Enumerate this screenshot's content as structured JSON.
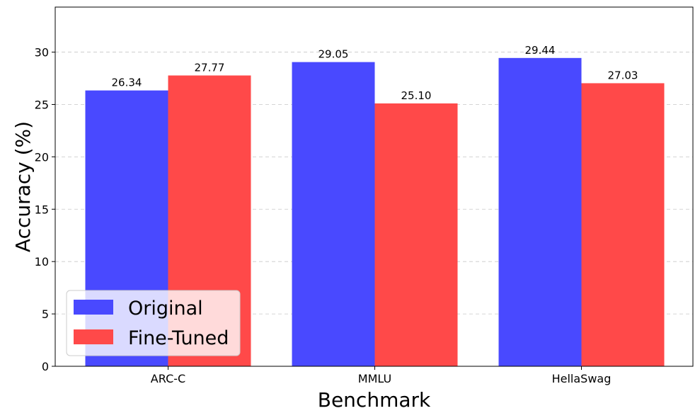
{
  "chart_data": {
    "type": "bar",
    "categories": [
      "ARC-C",
      "MMLU",
      "HellaSwag"
    ],
    "series": [
      {
        "name": "Original",
        "values": [
          26.34,
          29.05,
          29.44
        ],
        "color": "#4949ff"
      },
      {
        "name": "Fine-Tuned",
        "values": [
          27.77,
          25.1,
          27.03
        ],
        "color": "#ff4949"
      }
    ],
    "value_labels": [
      [
        "26.34",
        "29.05",
        "29.44"
      ],
      [
        "27.77",
        "25.10",
        "27.03"
      ]
    ],
    "title": "",
    "xlabel": "Benchmark",
    "ylabel": "Accuracy (%)",
    "ylim": [
      0,
      34.3
    ],
    "yticks": [
      0,
      5,
      10,
      15,
      20,
      25,
      30
    ],
    "grid": "y, dashed",
    "legend_position": "lower-left"
  }
}
